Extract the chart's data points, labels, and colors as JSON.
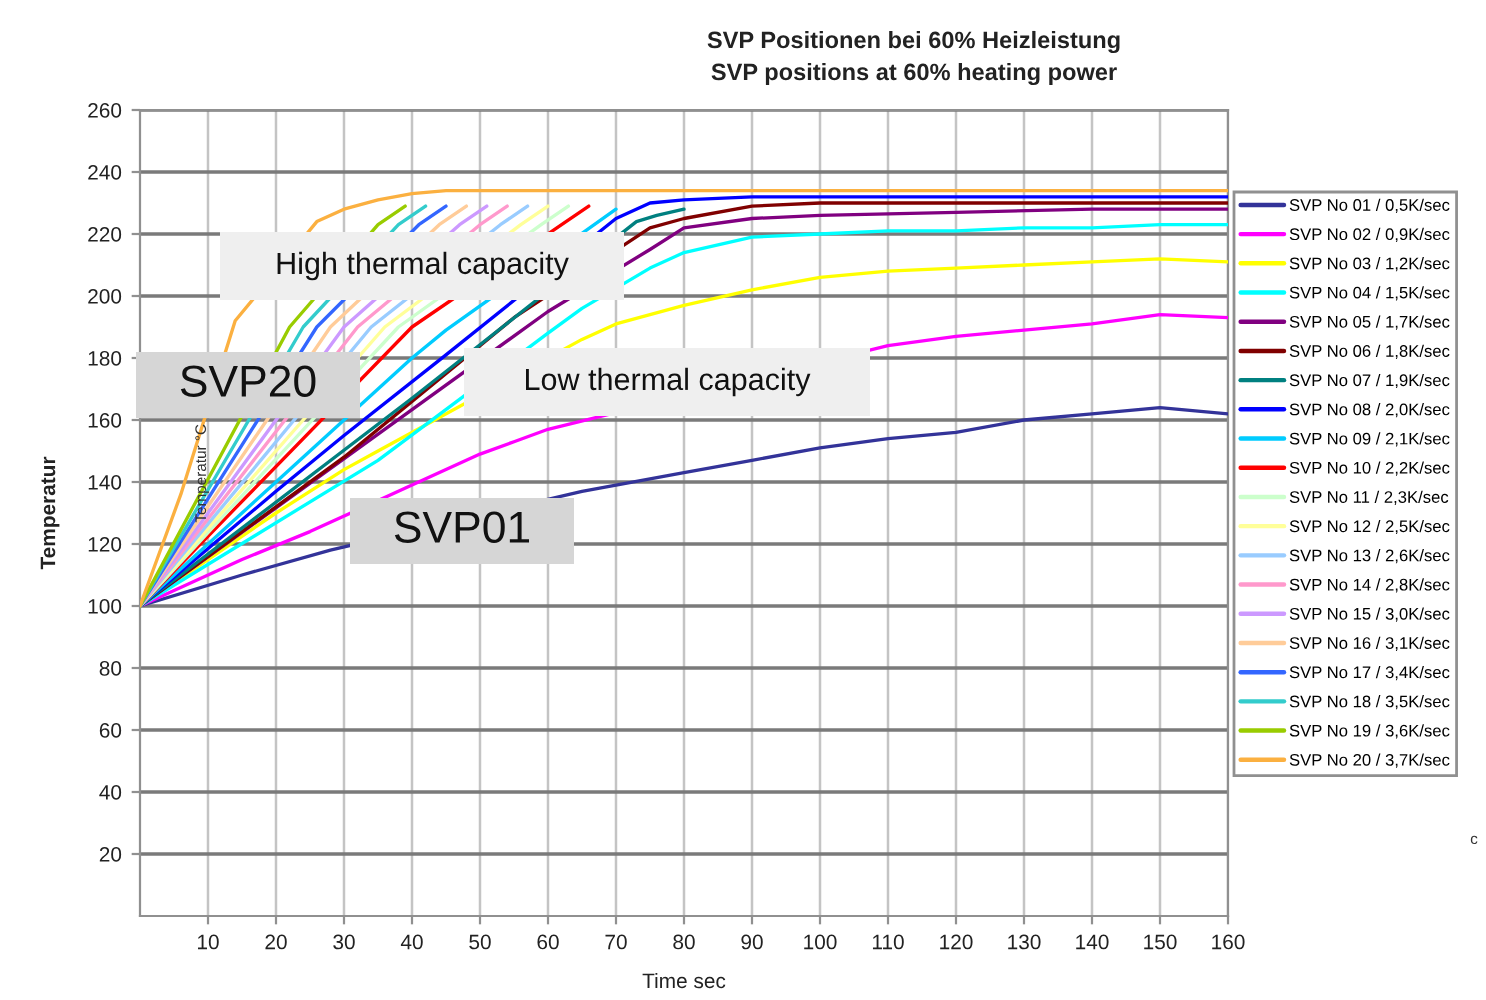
{
  "chart_data": {
    "type": "line",
    "title": "SVP Positionen bei 60% Heizleistung",
    "subtitle": "SVP positions at 60% heating power",
    "xlabel": "Time sec",
    "ylabel": "Temperatur",
    "series": [
      {
        "name": "SVP No 01 / 0,5K/sec",
        "color": "#333399",
        "x": [
          0,
          15,
          28,
          65,
          70,
          80,
          90,
          100,
          110,
          120,
          130,
          140,
          150,
          160
        ],
        "values": [
          100,
          110,
          118,
          137,
          139,
          143,
          147,
          151,
          154,
          156,
          160,
          162,
          164,
          162
        ]
      },
      {
        "name": "SVP No 02 / 0,9K/sec",
        "color": "#ff00ff",
        "x": [
          0,
          15,
          25,
          40,
          45,
          50,
          55,
          60,
          110,
          120,
          130,
          140,
          150,
          160
        ],
        "values": [
          100,
          115,
          124,
          139,
          144,
          149,
          153,
          157,
          184,
          187,
          189,
          191,
          194,
          193
        ]
      },
      {
        "name": "SVP No 03 / 1,2K/sec",
        "color": "#ffff00",
        "x": [
          0,
          20,
          30,
          35,
          65,
          70,
          75,
          80,
          90,
          100,
          110,
          120,
          130,
          140,
          150,
          160
        ],
        "values": [
          100,
          130,
          144,
          150,
          186,
          191,
          194,
          197,
          202,
          206,
          208,
          209,
          210,
          211,
          212,
          211
        ]
      },
      {
        "name": "SVP No 04 / 1,5K/sec",
        "color": "#00ffff",
        "x": [
          0,
          35,
          60,
          65,
          75,
          80,
          90,
          100,
          110,
          120,
          130,
          140,
          150,
          160
        ],
        "values": [
          100,
          147,
          188,
          196,
          209,
          214,
          219,
          220,
          221,
          221,
          222,
          222,
          223,
          223
        ]
      },
      {
        "name": "SVP No 05 / 1,7K/sec",
        "color": "#800080",
        "x": [
          0,
          60,
          75,
          80,
          90,
          100,
          120,
          140,
          160
        ],
        "values": [
          100,
          195,
          215,
          222,
          225,
          226,
          227,
          228,
          228
        ]
      },
      {
        "name": "SVP No 06 / 1,8K/sec",
        "color": "#800000",
        "x": [
          0,
          30,
          55,
          75,
          80,
          90,
          100,
          120,
          140,
          160
        ],
        "values": [
          100,
          148,
          193,
          222,
          225,
          229,
          230,
          230,
          230,
          230
        ]
      },
      {
        "name": "SVP No 07 / 1,9K/sec",
        "color": "#008080",
        "x": [
          0,
          40,
          73,
          76,
          80
        ],
        "values": [
          100,
          167,
          224,
          226,
          228
        ]
      },
      {
        "name": "SVP No 08 / 2,0K/sec",
        "color": "#0000ff",
        "x": [
          0,
          20,
          30,
          45,
          70,
          75,
          80,
          90,
          100,
          110,
          120,
          130,
          140,
          150,
          160
        ],
        "values": [
          100,
          137,
          155,
          181,
          225,
          230,
          231,
          232,
          232,
          232,
          232,
          232,
          232,
          232,
          232
        ]
      },
      {
        "name": "SVP No 09 / 2,1K/sec",
        "color": "#00ccff",
        "x": [
          0,
          20,
          35,
          40,
          45,
          70
        ],
        "values": [
          100,
          140,
          170,
          180,
          189,
          228
        ]
      },
      {
        "name": "SVP No 10 / 2,2K/sec",
        "color": "#ff0000",
        "x": [
          0,
          40,
          62,
          66
        ],
        "values": [
          100,
          190,
          223,
          229
        ]
      },
      {
        "name": "SVP No 11 / 2,3K/sec",
        "color": "#ccffcc",
        "x": [
          0,
          38,
          59,
          63
        ],
        "values": [
          100,
          190,
          223,
          229
        ]
      },
      {
        "name": "SVP No 12 / 2,5K/sec",
        "color": "#ffff99",
        "x": [
          0,
          36,
          56,
          60
        ],
        "values": [
          100,
          190,
          223,
          229
        ]
      },
      {
        "name": "SVP No 13 / 2,6K/sec",
        "color": "#99ccff",
        "x": [
          0,
          34,
          53,
          57
        ],
        "values": [
          100,
          190,
          223,
          229
        ]
      },
      {
        "name": "SVP No 14 / 2,8K/sec",
        "color": "#ff99cc",
        "x": [
          0,
          32,
          50,
          54
        ],
        "values": [
          100,
          190,
          223,
          229
        ]
      },
      {
        "name": "SVP No 15 / 3,0K/sec",
        "color": "#cc99ff",
        "x": [
          0,
          30,
          47,
          51
        ],
        "values": [
          100,
          190,
          223,
          229
        ]
      },
      {
        "name": "SVP No 16 / 3,1K/sec",
        "color": "#ffcc99",
        "x": [
          0,
          28,
          44,
          48
        ],
        "values": [
          100,
          190,
          223,
          229
        ]
      },
      {
        "name": "SVP No 17 / 3,4K/sec",
        "color": "#3366ff",
        "x": [
          0,
          26,
          41,
          45
        ],
        "values": [
          100,
          190,
          223,
          229
        ]
      },
      {
        "name": "SVP No 18 / 3,5K/sec",
        "color": "#33cccc",
        "x": [
          0,
          24,
          38,
          42
        ],
        "values": [
          100,
          190,
          223,
          229
        ]
      },
      {
        "name": "SVP No 19 / 3,6K/sec",
        "color": "#99cc00",
        "x": [
          0,
          22,
          35,
          39
        ],
        "values": [
          100,
          190,
          223,
          229
        ]
      },
      {
        "name": "SVP No 20 / 3,7K/sec",
        "color": "#fbb040",
        "x": [
          0,
          6,
          14,
          26,
          30,
          35,
          40,
          45,
          160
        ],
        "values": [
          100,
          136,
          192,
          224,
          228,
          231,
          233,
          234,
          234
        ]
      }
    ],
    "xlim": [
      0,
      160
    ],
    "xticks": [
      10,
      20,
      30,
      40,
      50,
      60,
      70,
      80,
      90,
      100,
      110,
      120,
      130,
      140,
      150,
      160
    ],
    "ylim": [
      0,
      260
    ],
    "yticks": [
      20,
      40,
      60,
      80,
      100,
      120,
      140,
      160,
      180,
      200,
      220,
      240,
      260
    ],
    "grid": true,
    "legend": "right",
    "line_style": "solid",
    "annotations": [
      "High thermal capacity",
      "Low thermal capacity",
      "SVP20",
      "SVP01",
      "Temperatur °C",
      "c"
    ]
  }
}
